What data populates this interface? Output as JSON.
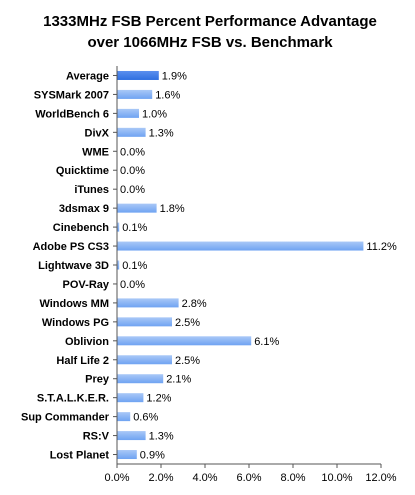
{
  "chart_data": {
    "type": "bar",
    "orientation": "horizontal",
    "title": "1333MHz FSB Percent Performance Advantage over 1066MHz FSB vs. Benchmark",
    "title_lines": [
      "1333MHz FSB Percent Performance Advantage",
      "over 1066MHz FSB vs. Benchmark"
    ],
    "categories": [
      "Average",
      "SYSMark 2007",
      "WorldBench 6",
      "DivX",
      "WME",
      "Quicktime",
      "iTunes",
      "3dsmax 9",
      "Cinebench",
      "Adobe PS CS3",
      "Lightwave 3D",
      "POV-Ray",
      "Windows MM",
      "Windows PG",
      "Oblivion",
      "Half Life 2",
      "Prey",
      "S.T.A.L.K.E.R.",
      "Sup Commander",
      "RS:V",
      "Lost Planet"
    ],
    "values": [
      1.9,
      1.6,
      1.0,
      1.3,
      0.0,
      0.0,
      0.0,
      1.8,
      0.1,
      11.2,
      0.1,
      0.0,
      2.8,
      2.5,
      6.1,
      2.5,
      2.1,
      1.2,
      0.6,
      1.3,
      0.9
    ],
    "value_labels": [
      "1.9%",
      "1.6%",
      "1.0%",
      "1.3%",
      "0.0%",
      "0.0%",
      "0.0%",
      "1.8%",
      "0.1%",
      "11.2%",
      "0.1%",
      "0.0%",
      "2.8%",
      "2.5%",
      "6.1%",
      "2.5%",
      "2.1%",
      "1.2%",
      "0.6%",
      "1.3%",
      "0.9%"
    ],
    "xlim": [
      0,
      12
    ],
    "xticks": [
      0,
      2,
      4,
      6,
      8,
      10,
      12
    ],
    "xtick_labels": [
      "0.0%",
      "2.0%",
      "4.0%",
      "6.0%",
      "8.0%",
      "10.0%",
      "12.0%"
    ],
    "xlabel": "",
    "ylabel": "",
    "grid": false,
    "legend": "none",
    "colors": {
      "highlight_bar": "#2f6fe0",
      "bar": "#6fa3f2",
      "bar_light": "#a9c8f7",
      "axis": "#555555"
    }
  }
}
